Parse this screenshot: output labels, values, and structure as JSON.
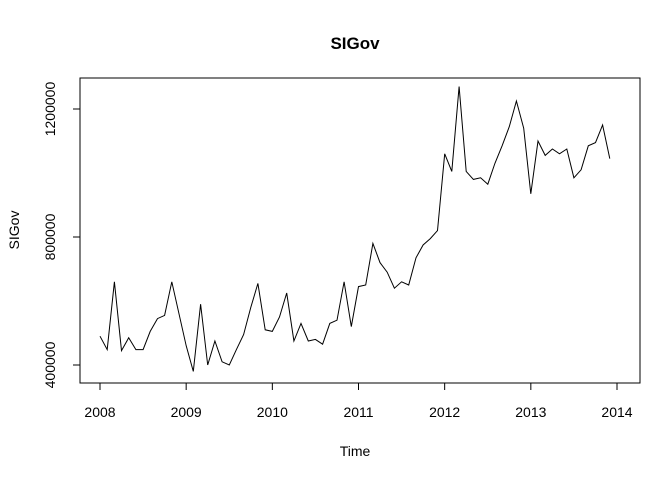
{
  "chart_data": {
    "type": "line",
    "title": "SIGov",
    "xlabel": "Time",
    "ylabel": "SIGov",
    "xlim": [
      2008,
      2014
    ],
    "ylim": [
      400000,
      1250000
    ],
    "x_ticks": [
      2008,
      2009,
      2010,
      2011,
      2012,
      2013,
      2014
    ],
    "x_tick_labels": [
      "2008",
      "2009",
      "2010",
      "2011",
      "2012",
      "2013",
      "2014"
    ],
    "y_ticks": [
      400000,
      800000,
      1200000
    ],
    "y_tick_labels": [
      "400000",
      "800000",
      "1200000"
    ],
    "grid": false,
    "series": [
      {
        "x": [
          2008.0,
          2008.083,
          2008.167,
          2008.25,
          2008.333,
          2008.417,
          2008.5,
          2008.583,
          2008.667,
          2008.75,
          2008.833,
          2008.917,
          2009.0,
          2009.083,
          2009.167,
          2009.25,
          2009.333,
          2009.417,
          2009.5,
          2009.583,
          2009.667,
          2009.75,
          2009.833,
          2009.917,
          2010.0,
          2010.083,
          2010.167,
          2010.25,
          2010.333,
          2010.417,
          2010.5,
          2010.583,
          2010.667,
          2010.75,
          2010.833,
          2010.917,
          2011.0,
          2011.083,
          2011.167,
          2011.25,
          2011.333,
          2011.417,
          2011.5,
          2011.583,
          2011.667,
          2011.75,
          2011.833,
          2011.917,
          2012.0,
          2012.083,
          2012.167,
          2012.25,
          2012.333,
          2012.417,
          2012.5,
          2012.583,
          2012.667,
          2012.75,
          2012.833,
          2012.917,
          2013.0,
          2013.083,
          2013.167,
          2013.25,
          2013.333,
          2013.417,
          2013.5,
          2013.583,
          2013.667,
          2013.75,
          2013.833,
          2013.917
        ],
        "values": [
          490000,
          448000,
          660000,
          445000,
          485000,
          448000,
          448000,
          505000,
          545000,
          555000,
          660000,
          560000,
          460000,
          380000,
          590000,
          400000,
          475000,
          410000,
          400000,
          448000,
          495000,
          580000,
          655000,
          510000,
          505000,
          550000,
          625000,
          475000,
          530000,
          475000,
          480000,
          465000,
          530000,
          540000,
          660000,
          520000,
          645000,
          650000,
          780000,
          720000,
          690000,
          640000,
          660000,
          650000,
          735000,
          775000,
          795000,
          820000,
          1060000,
          1005000,
          1270000,
          1005000,
          980000,
          985000,
          965000,
          1030000,
          1085000,
          1145000,
          1225000,
          1140000,
          935000,
          1100000,
          1055000,
          1075000,
          1060000,
          1075000,
          985000,
          1010000,
          1085000,
          1095000,
          1150000,
          1045000
        ]
      }
    ]
  }
}
